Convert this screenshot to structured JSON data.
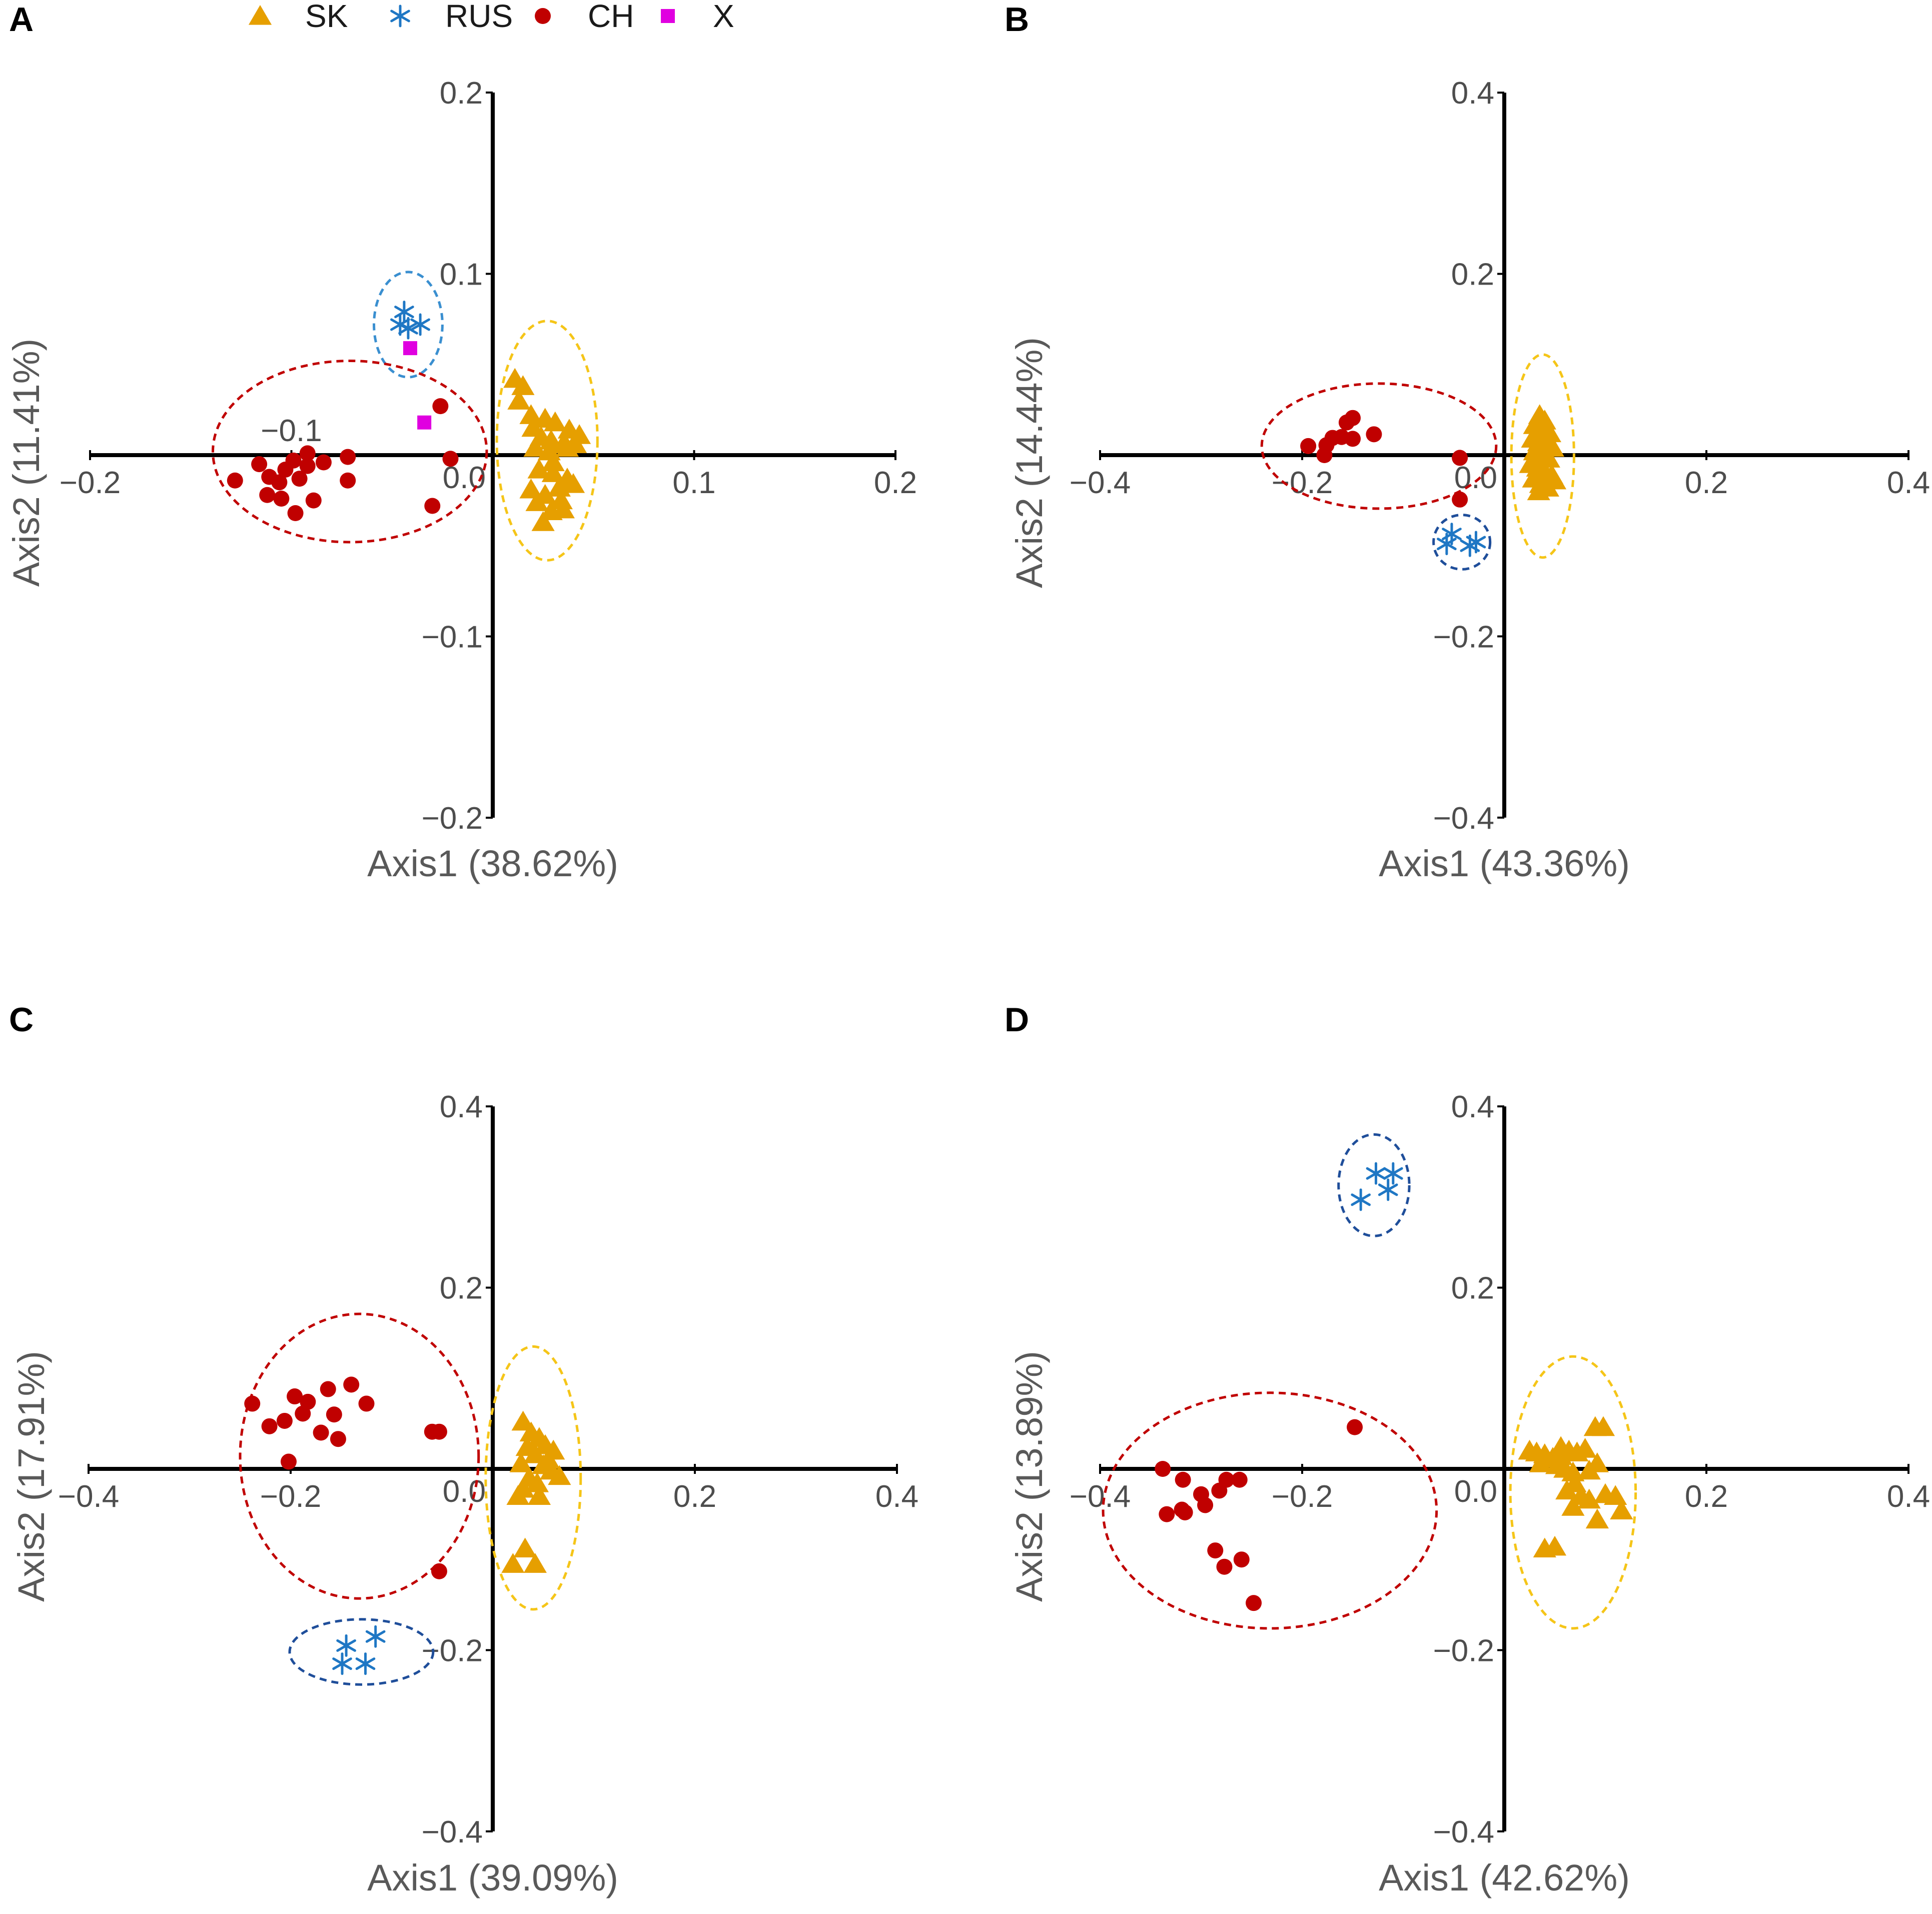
{
  "legend": {
    "items": [
      {
        "label": "SK",
        "marker": "triangle",
        "color": "#E69F00"
      },
      {
        "label": "RUS",
        "marker": "asterisk",
        "color": "#1F77C4"
      },
      {
        "label": "CH",
        "marker": "circle",
        "color": "#C00000"
      },
      {
        "label": "X",
        "marker": "square",
        "color": "#E000E0"
      }
    ]
  },
  "colors": {
    "SK": "#E69F00",
    "RUS": "#1F77C4",
    "CH": "#C00000",
    "X": "#E000E0",
    "ellipse_SK": "#F5C518",
    "ellipse_RUS": "#1F4E9A",
    "ellipse_CH": "#C00000",
    "ellipse_RUS_A": "#3A8FD0"
  },
  "chart_data": [
    {
      "panel": "A",
      "type": "scatter",
      "xlabel": "Axis1 (38.62%)",
      "ylabel": "Axis2 (11.41%)",
      "xlim": [
        -0.2,
        0.2
      ],
      "ylim": [
        -0.2,
        0.2
      ],
      "x_ticks": [
        {
          "value": -0.2,
          "label": "−0.2"
        },
        {
          "value": -0.1,
          "label": "−0.1"
        },
        {
          "value": 0.0,
          "label": "0.0"
        },
        {
          "value": 0.1,
          "label": "0.1"
        },
        {
          "value": 0.2,
          "label": "0.2"
        }
      ],
      "y_ticks": [
        {
          "value": -0.2,
          "label": "−0.2"
        },
        {
          "value": -0.1,
          "label": "−0.1"
        },
        {
          "value": 0.1,
          "label": "0.1"
        },
        {
          "value": 0.2,
          "label": "0.2"
        }
      ],
      "series": [
        {
          "name": "SK",
          "points": [
            [
              0.011,
              0.042
            ],
            [
              0.015,
              0.038
            ],
            [
              0.013,
              0.03
            ],
            [
              0.019,
              0.022
            ],
            [
              0.02,
              0.015
            ],
            [
              0.026,
              0.02
            ],
            [
              0.031,
              0.018
            ],
            [
              0.038,
              0.014
            ],
            [
              0.043,
              0.011
            ],
            [
              0.024,
              0.01
            ],
            [
              0.029,
              0.008
            ],
            [
              0.035,
              0.006
            ],
            [
              0.021,
              0.004
            ],
            [
              0.028,
              0.002
            ],
            [
              0.037,
              0.004
            ],
            [
              0.041,
              0.006
            ],
            [
              0.023,
              -0.008
            ],
            [
              0.03,
              -0.01
            ],
            [
              0.037,
              -0.013
            ],
            [
              0.019,
              -0.019
            ],
            [
              0.026,
              -0.022
            ],
            [
              0.033,
              -0.018
            ],
            [
              0.04,
              -0.016
            ],
            [
              0.022,
              -0.026
            ],
            [
              0.029,
              -0.031
            ],
            [
              0.035,
              -0.03
            ],
            [
              0.025,
              -0.037
            ],
            [
              0.03,
              -0.004
            ],
            [
              0.034,
              -0.025
            ]
          ]
        },
        {
          "name": "RUS",
          "points": [
            [
              -0.044,
              0.079
            ],
            [
              -0.046,
              0.072
            ],
            [
              -0.042,
              0.07
            ],
            [
              -0.036,
              0.072
            ]
          ]
        },
        {
          "name": "CH",
          "points": [
            [
              -0.128,
              -0.014
            ],
            [
              -0.116,
              -0.005
            ],
            [
              -0.111,
              -0.012
            ],
            [
              -0.106,
              -0.015
            ],
            [
              -0.103,
              -0.008
            ],
            [
              -0.099,
              -0.003
            ],
            [
              -0.092,
              -0.006
            ],
            [
              -0.096,
              -0.013
            ],
            [
              -0.084,
              -0.004
            ],
            [
              -0.105,
              -0.024
            ],
            [
              -0.098,
              -0.032
            ],
            [
              -0.089,
              -0.025
            ],
            [
              -0.112,
              -0.022
            ],
            [
              -0.092,
              0.001
            ],
            [
              -0.072,
              -0.001
            ],
            [
              -0.072,
              -0.014
            ],
            [
              -0.026,
              0.027
            ],
            [
              -0.021,
              -0.002
            ],
            [
              -0.03,
              -0.028
            ]
          ]
        },
        {
          "name": "X",
          "points": [
            [
              -0.041,
              0.059
            ],
            [
              -0.034,
              0.018
            ]
          ]
        }
      ],
      "ellipses": [
        {
          "group": "SK",
          "cx": 0.027,
          "cy": 0.008,
          "rx": 0.025,
          "ry": 0.066
        },
        {
          "group": "RUS",
          "cx": -0.042,
          "cy": 0.072,
          "rx": 0.017,
          "ry": 0.029
        },
        {
          "group": "CH",
          "cx": -0.071,
          "cy": 0.002,
          "rx": 0.068,
          "ry": 0.05
        }
      ]
    },
    {
      "panel": "B",
      "type": "scatter",
      "xlabel": "Axis1 (43.36%)",
      "ylabel": "Axis2 (14.44%)",
      "xlim": [
        -0.4,
        0.4
      ],
      "ylim": [
        -0.4,
        0.4
      ],
      "x_ticks": [
        {
          "value": -0.4,
          "label": "−0.4"
        },
        {
          "value": -0.2,
          "label": "−0.2"
        },
        {
          "value": 0.0,
          "label": "0.0"
        },
        {
          "value": 0.2,
          "label": "0.2"
        },
        {
          "value": 0.4,
          "label": "0.4"
        }
      ],
      "y_ticks": [
        {
          "value": -0.4,
          "label": "−0.4"
        },
        {
          "value": -0.2,
          "label": "−0.2"
        },
        {
          "value": 0.2,
          "label": "0.2"
        },
        {
          "value": 0.4,
          "label": "0.4"
        }
      ],
      "series": [
        {
          "name": "SK",
          "points": [
            [
              0.035,
              0.044
            ],
            [
              0.04,
              0.038
            ],
            [
              0.03,
              0.033
            ],
            [
              0.038,
              0.028
            ],
            [
              0.045,
              0.024
            ],
            [
              0.028,
              0.018
            ],
            [
              0.034,
              0.014
            ],
            [
              0.041,
              0.012
            ],
            [
              0.048,
              0.008
            ],
            [
              0.03,
              0.004
            ],
            [
              0.037,
              0.002
            ],
            [
              0.044,
              -0.004
            ],
            [
              0.026,
              -0.01
            ],
            [
              0.033,
              -0.014
            ],
            [
              0.04,
              -0.018
            ],
            [
              0.047,
              -0.022
            ],
            [
              0.029,
              -0.026
            ],
            [
              0.036,
              -0.032
            ],
            [
              0.043,
              -0.036
            ],
            [
              0.034,
              -0.04
            ],
            [
              0.05,
              -0.028
            ],
            [
              0.032,
              -0.005
            ]
          ]
        },
        {
          "name": "RUS",
          "points": [
            [
              -0.052,
              -0.087
            ],
            [
              -0.057,
              -0.098
            ],
            [
              -0.034,
              -0.1
            ],
            [
              -0.028,
              -0.096
            ]
          ]
        },
        {
          "name": "CH",
          "points": [
            [
              -0.194,
              0.01
            ],
            [
              -0.176,
              0.011
            ],
            [
              -0.17,
              0.019
            ],
            [
              -0.161,
              0.02
            ],
            [
              -0.15,
              0.018
            ],
            [
              -0.156,
              0.036
            ],
            [
              -0.15,
              0.041
            ],
            [
              -0.129,
              0.023
            ],
            [
              -0.178,
              0.0
            ],
            [
              -0.044,
              -0.003
            ],
            [
              -0.044,
              -0.049
            ]
          ]
        }
      ],
      "ellipses": [
        {
          "group": "SK",
          "cx": 0.038,
          "cy": -0.001,
          "rx": 0.031,
          "ry": 0.112
        },
        {
          "group": "RUS",
          "cx": -0.042,
          "cy": -0.096,
          "rx": 0.028,
          "ry": 0.03
        },
        {
          "group": "CH",
          "cx": -0.124,
          "cy": 0.01,
          "rx": 0.116,
          "ry": 0.069
        }
      ]
    },
    {
      "panel": "C",
      "type": "scatter",
      "xlabel": "Axis1 (39.09%)",
      "ylabel": "Axis2 (17.91%)",
      "xlim": [
        -0.4,
        0.4
      ],
      "ylim": [
        -0.4,
        0.4
      ],
      "x_ticks": [
        {
          "value": -0.4,
          "label": "−0.4"
        },
        {
          "value": -0.2,
          "label": "−0.2"
        },
        {
          "value": 0.0,
          "label": "0.0"
        },
        {
          "value": 0.2,
          "label": "0.2"
        },
        {
          "value": 0.4,
          "label": "0.4"
        }
      ],
      "y_ticks": [
        {
          "value": -0.4,
          "label": "−0.4"
        },
        {
          "value": -0.2,
          "label": "−0.2"
        },
        {
          "value": 0.2,
          "label": "0.2"
        },
        {
          "value": 0.4,
          "label": "0.4"
        }
      ],
      "series": [
        {
          "name": "SK",
          "points": [
            [
              0.03,
              0.052
            ],
            [
              0.038,
              0.04
            ],
            [
              0.046,
              0.034
            ],
            [
              0.052,
              0.026
            ],
            [
              0.06,
              0.02
            ],
            [
              0.034,
              0.024
            ],
            [
              0.042,
              0.016
            ],
            [
              0.028,
              0.006
            ],
            [
              0.05,
              0.004
            ],
            [
              0.058,
              -0.002
            ],
            [
              0.066,
              -0.008
            ],
            [
              0.036,
              -0.01
            ],
            [
              0.044,
              -0.016
            ],
            [
              0.03,
              -0.022
            ],
            [
              0.046,
              -0.03
            ],
            [
              0.032,
              -0.088
            ],
            [
              0.02,
              -0.105
            ],
            [
              0.042,
              -0.105
            ],
            [
              0.055,
              0.01
            ],
            [
              0.025,
              -0.03
            ]
          ]
        },
        {
          "name": "RUS",
          "points": [
            [
              -0.145,
              -0.195
            ],
            [
              -0.116,
              -0.185
            ],
            [
              -0.149,
              -0.215
            ],
            [
              -0.126,
              -0.215
            ]
          ]
        },
        {
          "name": "CH",
          "points": [
            [
              -0.238,
              0.072
            ],
            [
              -0.221,
              0.047
            ],
            [
              -0.206,
              0.053
            ],
            [
              -0.196,
              0.08
            ],
            [
              -0.188,
              0.061
            ],
            [
              -0.183,
              0.074
            ],
            [
              -0.17,
              0.04
            ],
            [
              -0.157,
              0.06
            ],
            [
              -0.163,
              0.088
            ],
            [
              -0.153,
              0.033
            ],
            [
              -0.125,
              0.072
            ],
            [
              -0.14,
              0.093
            ],
            [
              -0.202,
              0.008
            ],
            [
              -0.06,
              0.041
            ],
            [
              -0.053,
              0.041
            ],
            [
              -0.053,
              -0.113
            ]
          ]
        }
      ],
      "ellipses": [
        {
          "group": "SK",
          "cx": 0.04,
          "cy": -0.01,
          "rx": 0.047,
          "ry": 0.145
        },
        {
          "group": "RUS",
          "cx": -0.13,
          "cy": -0.202,
          "rx": 0.071,
          "ry": 0.036
        },
        {
          "group": "CH",
          "cx": -0.132,
          "cy": 0.014,
          "rx": 0.118,
          "ry": 0.157
        }
      ]
    },
    {
      "panel": "D",
      "type": "scatter",
      "xlabel": "Axis1 (42.62%)",
      "ylabel": "Axis2 (13.89%)",
      "xlim": [
        -0.4,
        0.4
      ],
      "ylim": [
        -0.4,
        0.4
      ],
      "x_ticks": [
        {
          "value": -0.4,
          "label": "−0.4"
        },
        {
          "value": -0.2,
          "label": "−0.2"
        },
        {
          "value": 0.0,
          "label": "0.0"
        },
        {
          "value": 0.2,
          "label": "0.2"
        },
        {
          "value": 0.4,
          "label": "0.4"
        }
      ],
      "y_ticks": [
        {
          "value": -0.4,
          "label": "−0.4"
        },
        {
          "value": -0.2,
          "label": "−0.2"
        },
        {
          "value": 0.2,
          "label": "0.2"
        },
        {
          "value": 0.4,
          "label": "0.4"
        }
      ],
      "series": [
        {
          "name": "SK",
          "points": [
            [
              0.025,
              0.02
            ],
            [
              0.032,
              0.018
            ],
            [
              0.04,
              0.016
            ],
            [
              0.048,
              0.012
            ],
            [
              0.056,
              0.014
            ],
            [
              0.064,
              0.02
            ],
            [
              0.072,
              0.018
            ],
            [
              0.08,
              0.022
            ],
            [
              0.09,
              0.046
            ],
            [
              0.098,
              0.046
            ],
            [
              0.036,
              0.006
            ],
            [
              0.052,
              0.004
            ],
            [
              0.06,
              0.0
            ],
            [
              0.068,
              -0.004
            ],
            [
              0.084,
              -0.002
            ],
            [
              0.092,
              0.006
            ],
            [
              0.07,
              -0.016
            ],
            [
              0.062,
              -0.024
            ],
            [
              0.076,
              -0.03
            ],
            [
              0.084,
              -0.034
            ],
            [
              0.068,
              -0.042
            ],
            [
              0.1,
              -0.028
            ],
            [
              0.11,
              -0.03
            ],
            [
              0.116,
              -0.046
            ],
            [
              0.092,
              -0.056
            ],
            [
              0.04,
              -0.088
            ],
            [
              0.05,
              -0.086
            ],
            [
              0.056,
              0.024
            ]
          ]
        },
        {
          "name": "RUS",
          "points": [
            [
              -0.142,
              0.297
            ],
            [
              -0.127,
              0.326
            ],
            [
              -0.11,
              0.326
            ],
            [
              -0.115,
              0.308
            ]
          ]
        },
        {
          "name": "CH",
          "points": [
            [
              -0.338,
              0.0
            ],
            [
              -0.318,
              -0.012
            ],
            [
              -0.316,
              -0.048
            ],
            [
              -0.334,
              -0.05
            ],
            [
              -0.319,
              -0.045
            ],
            [
              -0.3,
              -0.028
            ],
            [
              -0.296,
              -0.04
            ],
            [
              -0.282,
              -0.024
            ],
            [
              -0.275,
              -0.012
            ],
            [
              -0.262,
              -0.012
            ],
            [
              -0.286,
              -0.09
            ],
            [
              -0.26,
              -0.1
            ],
            [
              -0.277,
              -0.108
            ],
            [
              -0.248,
              -0.148
            ],
            [
              -0.148,
              0.046
            ]
          ]
        }
      ],
      "ellipses": [
        {
          "group": "SK",
          "cx": 0.068,
          "cy": -0.026,
          "rx": 0.062,
          "ry": 0.15
        },
        {
          "group": "RUS",
          "cx": -0.129,
          "cy": 0.313,
          "rx": 0.035,
          "ry": 0.056
        },
        {
          "group": "CH",
          "cx": -0.232,
          "cy": -0.046,
          "rx": 0.165,
          "ry": 0.13
        }
      ]
    }
  ]
}
